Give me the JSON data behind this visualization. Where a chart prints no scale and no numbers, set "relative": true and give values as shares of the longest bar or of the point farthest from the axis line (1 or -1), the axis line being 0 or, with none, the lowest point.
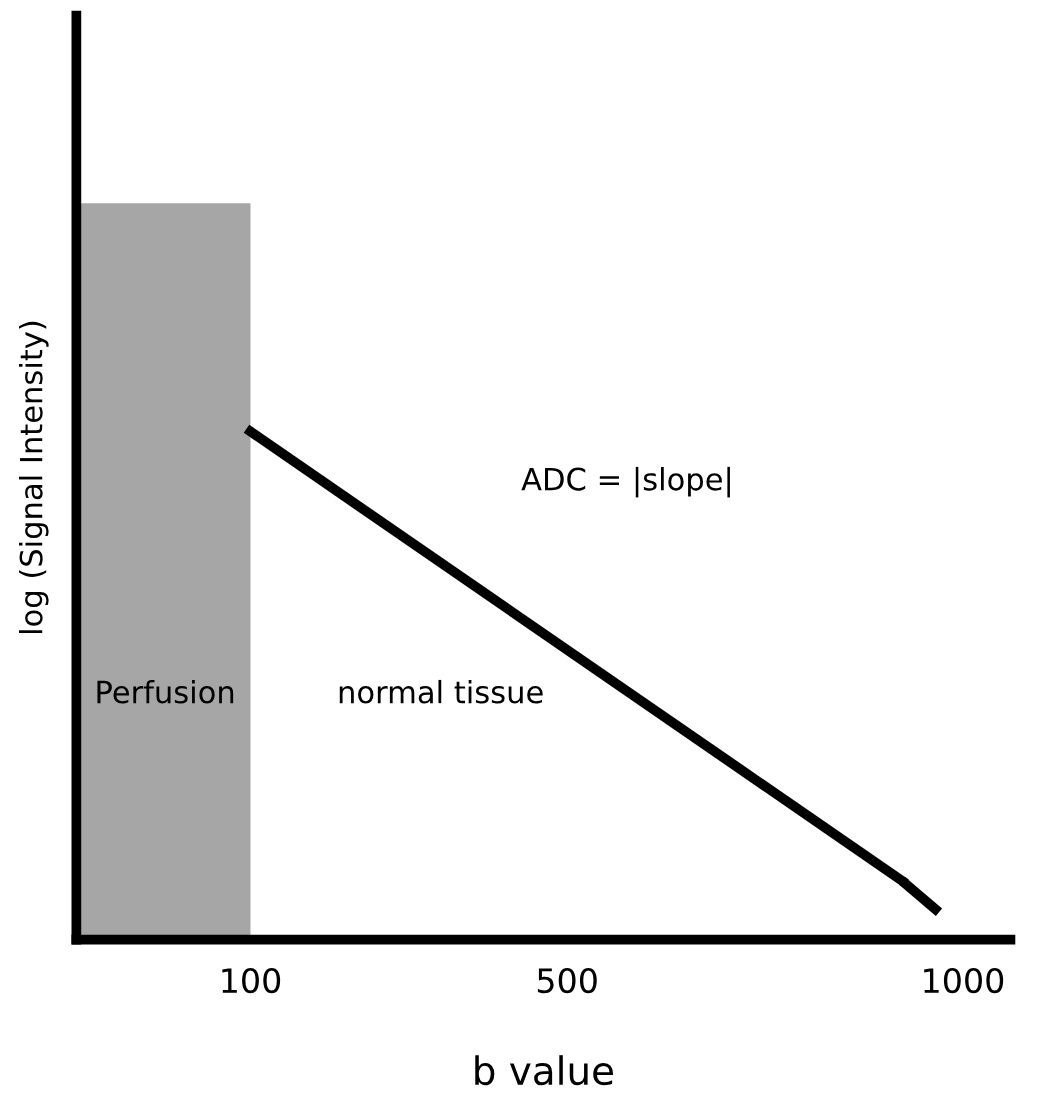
{
  "chart_data": {
    "type": "line",
    "relative": true,
    "xlabel": "b value",
    "ylabel": "log (Signal Intensity)",
    "xlim": [
      -120,
      1060
    ],
    "xticks": [
      100,
      500,
      1000
    ],
    "grid": false,
    "legend": false,
    "series": [
      {
        "type": "area",
        "color": "#a6a6a6",
        "x": [
          -120,
          100
        ],
        "values": [
          1,
          1
        ]
      },
      {
        "color": "#000000",
        "line_style": "solid",
        "x": [
          100,
          923
        ],
        "values": [
          0.69,
          0.08
        ]
      },
      {
        "color": "#000000",
        "line_style": "dashed",
        "x": [
          923,
          995
        ],
        "values": [
          0.08,
          0.014
        ]
      }
    ],
    "annotations": [
      "Perfusion",
      "normal tissue",
      "ADC = |slope|"
    ]
  }
}
